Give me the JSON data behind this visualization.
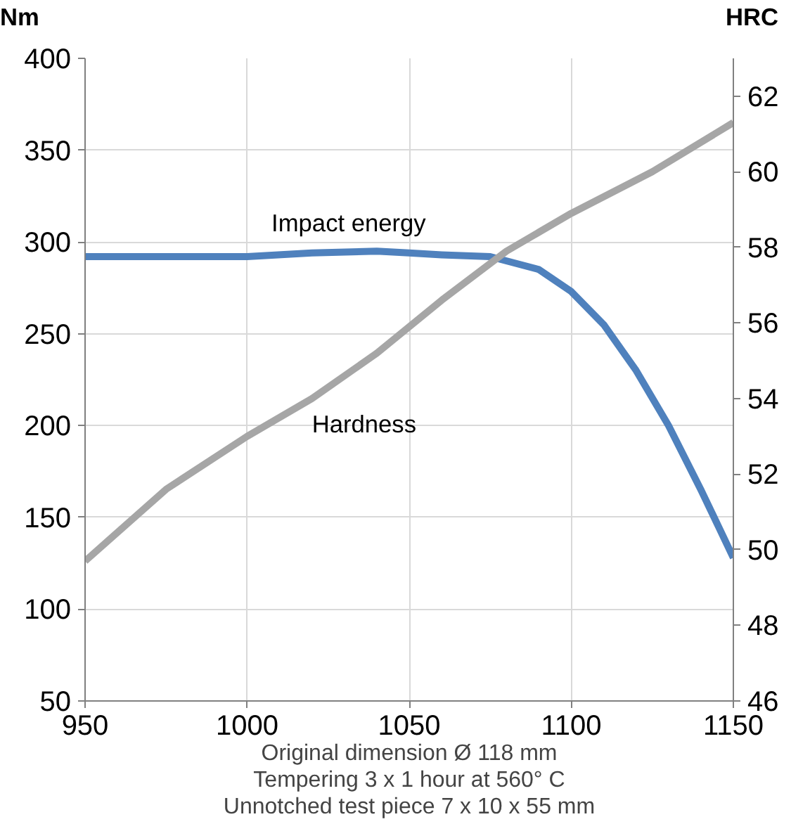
{
  "chart_data": {
    "type": "line",
    "xlim": [
      950,
      1150
    ],
    "xticks": [
      950,
      1000,
      1050,
      1100,
      1150
    ],
    "ylim": [
      50,
      400
    ],
    "yticks": [
      50,
      100,
      150,
      200,
      250,
      300,
      350,
      400
    ],
    "y2lim": [
      46,
      63
    ],
    "y2ticks": [
      46,
      48,
      50,
      52,
      54,
      56,
      58,
      60,
      62
    ],
    "ylabel": "Nm",
    "y2label": "HRC",
    "grid": true,
    "marker": "none",
    "line_style": "solid",
    "annotations": [
      "Original dimension Ø 118 mm",
      "Tempering 3 x 1 hour at 560° C",
      "Unnotched test piece 7 x 10 x 55 mm"
    ],
    "series": [
      {
        "name": "Impact energy",
        "color": "#4f81bd",
        "x": [
          950,
          1000,
          1020,
          1040,
          1050,
          1060,
          1075,
          1090,
          1100,
          1110,
          1120,
          1130,
          1140,
          1150
        ],
        "values": [
          292,
          292,
          294,
          295,
          294,
          293,
          292,
          285,
          273,
          255,
          230,
          200,
          165,
          128
        ]
      },
      {
        "name": "Hardness",
        "color": "#a6a6a6",
        "axis": "y2",
        "x": [
          950,
          975,
          1000,
          1020,
          1040,
          1060,
          1080,
          1100,
          1125,
          1150
        ],
        "values": [
          49.7,
          51.6,
          53.0,
          54.0,
          55.2,
          56.6,
          57.9,
          58.9,
          60.0,
          61.3
        ]
      }
    ]
  }
}
